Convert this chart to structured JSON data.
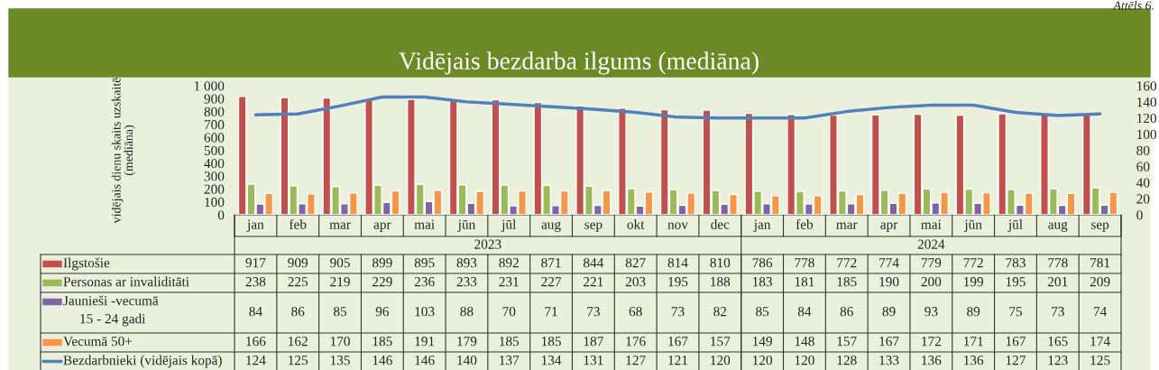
{
  "chart_data": {
    "type": "bar",
    "title": "Vidējais bezdarba ilgums (mediāna)",
    "ylabel": "vidējais dienu skaits uzskaitē\n(mediāna)",
    "annotations": [
      "Attēls 6.",
      "2023",
      "2024"
    ],
    "categories": [
      "jan",
      "feb",
      "mar",
      "apr",
      "mai",
      "jūn",
      "jūl",
      "aug",
      "sep",
      "okt",
      "nov",
      "dec",
      "jan",
      "feb",
      "mar",
      "apr",
      "mai",
      "jūn",
      "jūl",
      "aug",
      "sep"
    ],
    "series": [
      {
        "name": "Ilgstošie",
        "color": "#c0504d",
        "values": [
          917,
          909,
          905,
          899,
          895,
          893,
          892,
          871,
          844,
          827,
          814,
          810,
          786,
          778,
          772,
          774,
          779,
          772,
          783,
          778,
          781
        ]
      },
      {
        "name": "Personas ar invaliditāti",
        "color": "#9bbb59",
        "values": [
          238,
          225,
          219,
          229,
          236,
          233,
          231,
          227,
          221,
          203,
          195,
          188,
          183,
          181,
          185,
          190,
          200,
          199,
          195,
          201,
          209
        ]
      },
      {
        "name": "Jaunieši -vecumā\n15 - 24 gadi",
        "color": "#8064a2",
        "values": [
          84,
          86,
          85,
          96,
          103,
          88,
          70,
          71,
          73,
          68,
          73,
          82,
          85,
          84,
          86,
          89,
          93,
          89,
          75,
          73,
          74
        ]
      },
      {
        "name": "Vecumā 50+",
        "color": "#f79646",
        "values": [
          166,
          162,
          170,
          185,
          191,
          179,
          185,
          185,
          187,
          176,
          167,
          157,
          149,
          148,
          157,
          167,
          172,
          171,
          167,
          165,
          174
        ]
      },
      {
        "name": "Bezdarbnieki (vidējais kopā)",
        "type": "line",
        "axis": "y2",
        "color": "#4f81bd",
        "values": [
          124,
          125,
          135,
          146,
          146,
          140,
          137,
          134,
          131,
          127,
          121,
          120,
          120,
          120,
          128,
          133,
          136,
          136,
          127,
          123,
          125
        ]
      }
    ],
    "ylim": [
      0,
      1000
    ],
    "yticks": [
      0,
      100,
      200,
      300,
      400,
      500,
      600,
      700,
      800,
      900,
      {
        "value": 1000,
        "label": "1 000"
      }
    ],
    "y2lim": [
      0,
      160
    ],
    "y2ticks": [
      0,
      20,
      40,
      60,
      80,
      100,
      120,
      140,
      160
    ],
    "data_labels": true,
    "legend": "bottom"
  }
}
